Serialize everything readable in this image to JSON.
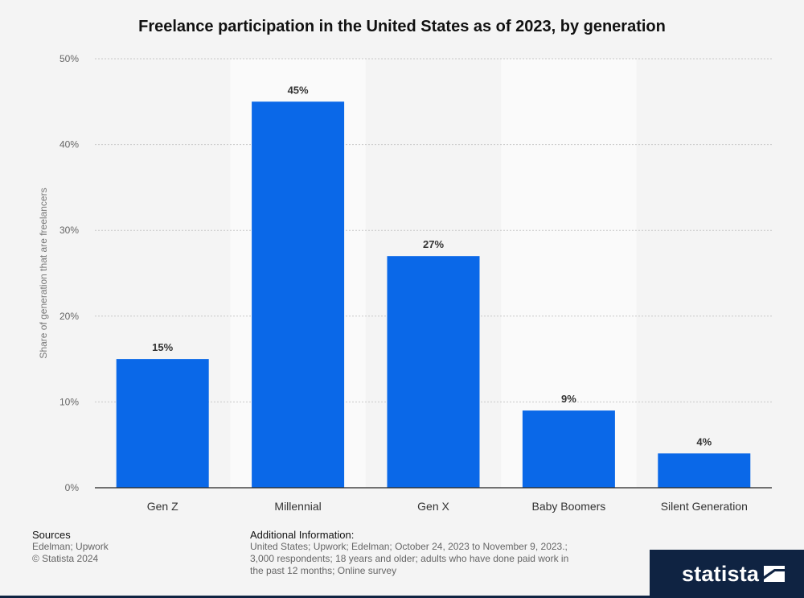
{
  "chart_data": {
    "type": "bar",
    "title": "Freelance participation in the United States as of 2023, by generation",
    "ylabel": "Share of generation that are freelancers",
    "xlabel": "",
    "categories": [
      "Gen Z",
      "Millennial",
      "Gen X",
      "Baby Boomers",
      "Silent Generation"
    ],
    "values": [
      15,
      45,
      27,
      9,
      4
    ],
    "data_labels": [
      "15%",
      "45%",
      "27%",
      "9%",
      "4%"
    ],
    "ylim": [
      0,
      50
    ],
    "yticks": [
      0,
      10,
      20,
      30,
      40,
      50
    ],
    "ytick_labels": [
      "0%",
      "10%",
      "20%",
      "30%",
      "40%",
      "50%"
    ],
    "grid": true,
    "bar_color": "#0a68e8"
  },
  "footer": {
    "sources_heading": "Sources",
    "sources_lines": [
      "Edelman; Upwork",
      "© Statista 2024"
    ],
    "additional_heading": "Additional Information:",
    "additional_text": "United States; Upwork; Edelman; October 24, 2023 to November 9, 2023.; 3,000 respondents; 18 years and older; adults who have done paid work in the past 12 months; Online survey"
  },
  "brand": {
    "name": "statista",
    "color": "#0f2342"
  }
}
